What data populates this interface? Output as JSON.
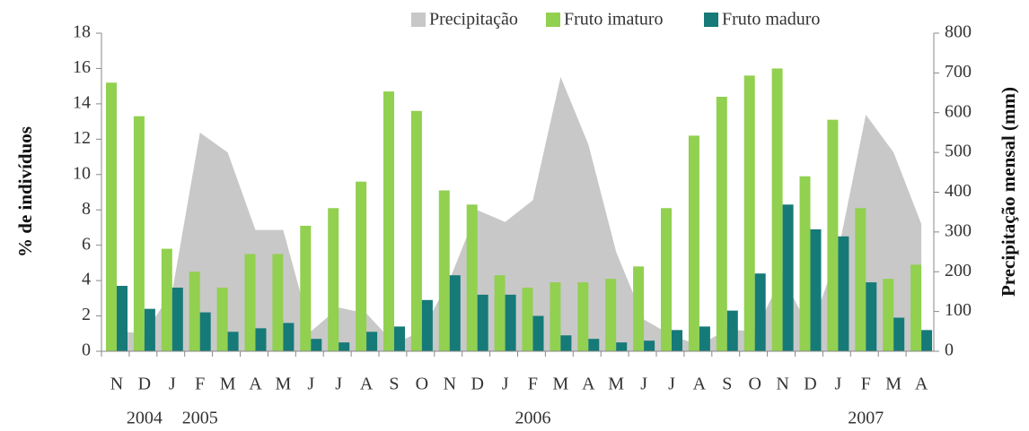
{
  "chart_data": {
    "type": "bar",
    "categories": [
      "N",
      "D",
      "J",
      "F",
      "M",
      "A",
      "M",
      "J",
      "J",
      "A",
      "S",
      "O",
      "N",
      "D",
      "J",
      "F",
      "M",
      "A",
      "M",
      "J",
      "J",
      "A",
      "S",
      "O",
      "N",
      "D",
      "J",
      "F",
      "M",
      "A"
    ],
    "year_labels": [
      null,
      "2004",
      null,
      "2005",
      null,
      null,
      null,
      null,
      null,
      null,
      null,
      null,
      null,
      null,
      null,
      "2006",
      null,
      null,
      null,
      null,
      null,
      null,
      null,
      null,
      null,
      null,
      null,
      "2007",
      null,
      null
    ],
    "series": [
      {
        "name": "Precipitação",
        "color": "#c8c8c8",
        "type": "area",
        "axis": "y2",
        "values": [
          50,
          45,
          150,
          550,
          500,
          305,
          305,
          50,
          110,
          95,
          20,
          50,
          180,
          355,
          325,
          380,
          690,
          520,
          250,
          80,
          40,
          15,
          55,
          50,
          190,
          50,
          250,
          595,
          500,
          320
        ]
      },
      {
        "name": "Fruto imaturo",
        "color": "#92d050",
        "type": "bar",
        "values": [
          15.2,
          13.3,
          5.8,
          4.5,
          3.6,
          5.5,
          5.5,
          7.1,
          8.1,
          9.6,
          14.7,
          13.6,
          9.1,
          8.3,
          4.3,
          3.6,
          3.9,
          3.9,
          4.1,
          4.8,
          8.1,
          12.2,
          14.4,
          15.6,
          16.0,
          9.9,
          13.1,
          8.1,
          4.1,
          4.9
        ]
      },
      {
        "name": "Fruto maduro",
        "color": "#167a78",
        "type": "bar",
        "values": [
          3.7,
          2.4,
          3.6,
          2.2,
          1.1,
          1.3,
          1.6,
          0.7,
          0.5,
          1.1,
          1.4,
          2.9,
          4.3,
          3.2,
          3.2,
          2.0,
          0.9,
          0.7,
          0.5,
          0.6,
          1.2,
          1.4,
          2.3,
          4.4,
          8.3,
          6.9,
          6.5,
          3.9,
          1.9,
          1.2
        ]
      }
    ],
    "y_label": "% de indivíduos",
    "y2_label": "Precipitação mensal (mm)",
    "ylim": [
      0,
      18
    ],
    "yticks": [
      0,
      2,
      4,
      6,
      8,
      10,
      12,
      14,
      16,
      18
    ],
    "y2lim": [
      0,
      800
    ],
    "y2ticks": [
      0,
      100,
      200,
      300,
      400,
      500,
      600,
      700,
      800
    ],
    "legend": "top"
  }
}
